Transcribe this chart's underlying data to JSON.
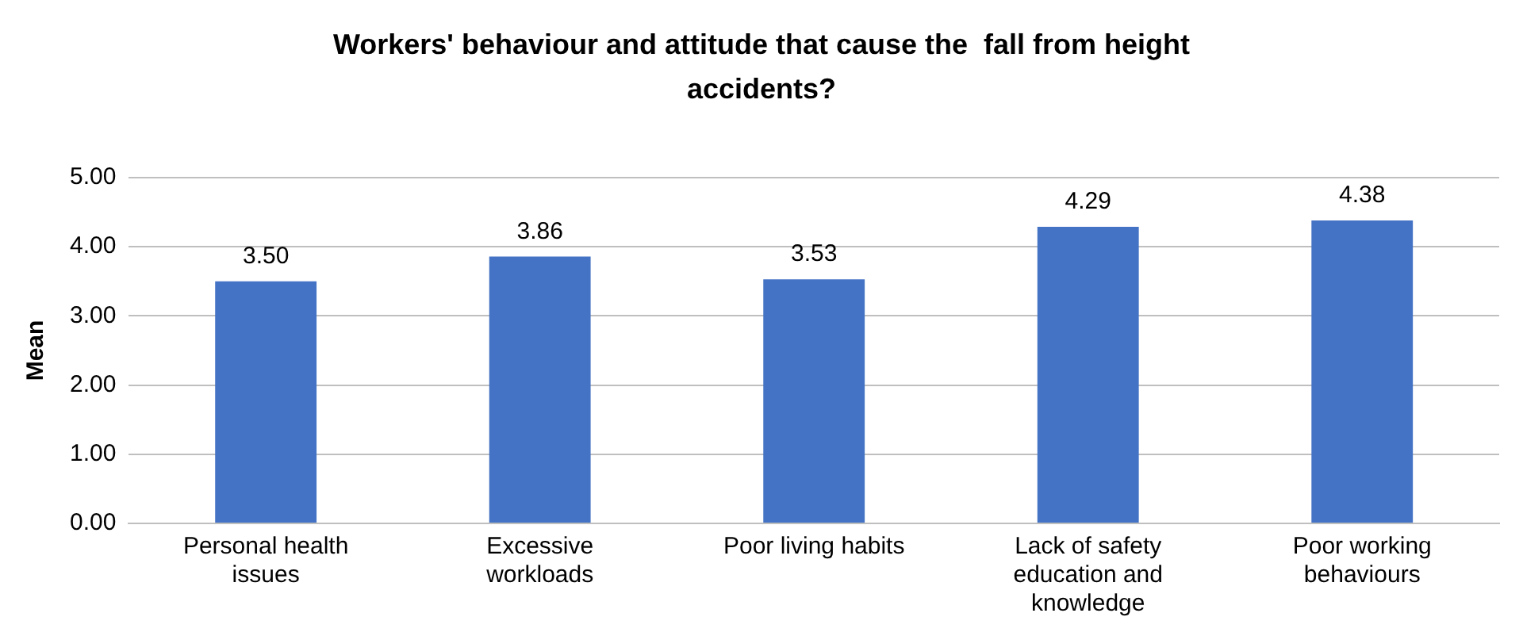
{
  "chart_data": {
    "type": "bar",
    "title": "Workers' behaviour and attitude that cause the  fall from height accidents?",
    "ylabel": "Mean",
    "categories": [
      "Personal health issues",
      "Excessive workloads",
      "Poor living habits",
      "Lack of safety education and knowledge",
      "Poor working behaviours"
    ],
    "values": [
      3.5,
      3.86,
      3.53,
      4.29,
      4.38
    ],
    "color": "#4472c4",
    "ylim": [
      0,
      5
    ],
    "yticks": [
      {
        "value": 0,
        "label": "0.00"
      },
      {
        "value": 1,
        "label": "1.00"
      },
      {
        "value": 2,
        "label": "2.00"
      },
      {
        "value": 3,
        "label": "3.00"
      },
      {
        "value": 4,
        "label": "4.00"
      },
      {
        "value": 5,
        "label": "5.00"
      }
    ],
    "grid": "y",
    "value_labels": [
      "3.50",
      "3.86",
      "3.53",
      "4.29",
      "4.38"
    ]
  }
}
